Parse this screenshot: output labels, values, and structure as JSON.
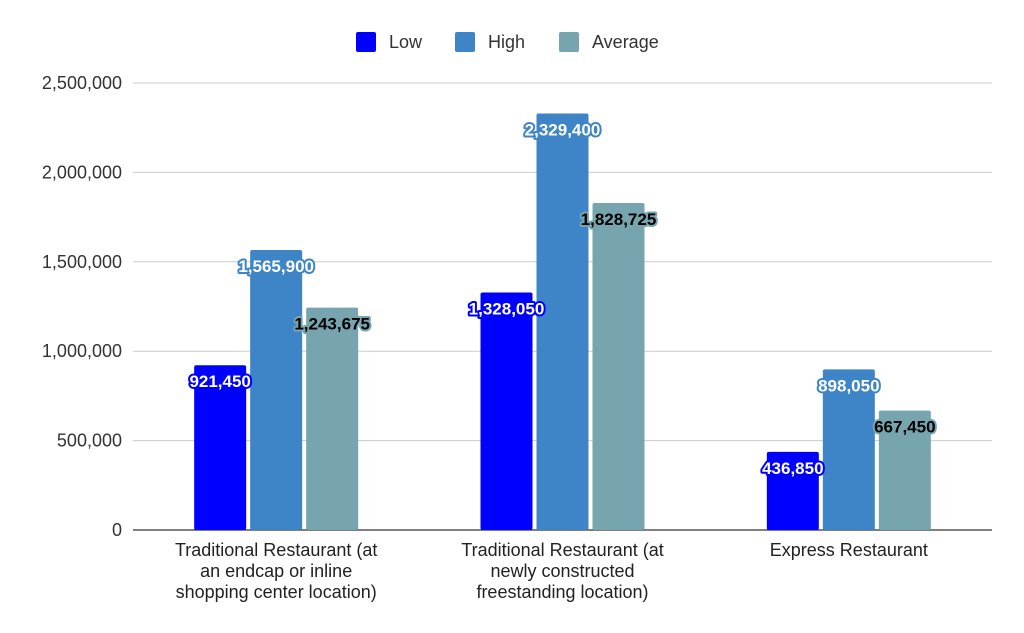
{
  "chart_data": {
    "type": "bar",
    "title": "",
    "xlabel": "",
    "ylabel": "",
    "ylim": [
      0,
      2500000
    ],
    "yticks": [
      0,
      500000,
      1000000,
      1500000,
      2000000,
      2500000
    ],
    "ytick_labels": [
      "0",
      "500,000",
      "1,000,000",
      "1,500,000",
      "2,000,000",
      "2,500,000"
    ],
    "grid": true,
    "legend_position": "top-center",
    "categories": [
      [
        "Traditional Restaurant (at",
        "an endcap or inline",
        "shopping center location)"
      ],
      [
        "Traditional Restaurant (at",
        "newly constructed",
        "freestanding location)"
      ],
      [
        "Express Restaurant"
      ]
    ],
    "series": [
      {
        "name": "Low",
        "color": "#0000ff",
        "label_text_color": "#ffffff",
        "label_outline_color": "#0000ff",
        "values": [
          921450,
          1328050,
          436850
        ],
        "labels": [
          "921,450",
          "1,328,050",
          "436,850"
        ]
      },
      {
        "name": "High",
        "color": "#3d85c6",
        "label_text_color": "#ffffff",
        "label_outline_color": "#3d85c6",
        "values": [
          1565900,
          2329400,
          898050
        ],
        "labels": [
          "1,565,900",
          "2,329,400",
          "898,050"
        ]
      },
      {
        "name": "Average",
        "color": "#76a5af",
        "label_text_color": "#000000",
        "label_outline_color": "#76a5af",
        "values": [
          1243675,
          1828725,
          667450
        ],
        "labels": [
          "1,243,675",
          "1,828,725",
          "667,450"
        ]
      }
    ]
  }
}
